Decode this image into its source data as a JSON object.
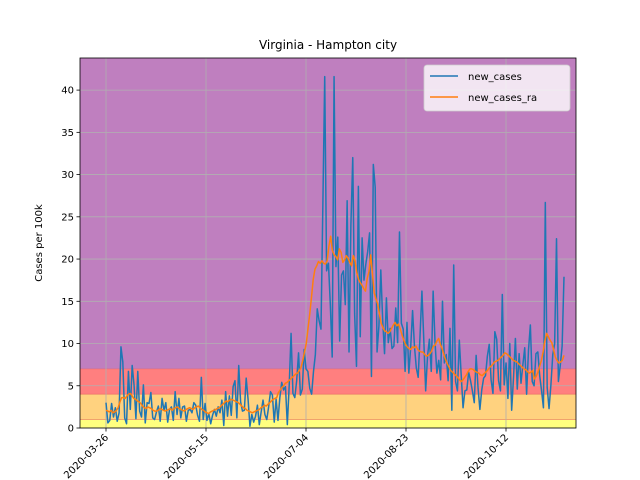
{
  "chart_data": {
    "type": "line",
    "title": "Virginia - Hampton city",
    "xlabel": "",
    "ylabel": "Cases per 100k",
    "x_tick_labels": [
      "2020-03-26",
      "2020-05-15",
      "2020-07-04",
      "2020-08-23",
      "2020-10-12"
    ],
    "x_start_date": "2020-03-26",
    "x_end_date": "2020-11-10",
    "xlim": [
      "2020-03-13",
      "2020-11-16"
    ],
    "ylim": [
      0,
      43.8
    ],
    "y_ticks": [
      0,
      5,
      10,
      15,
      20,
      25,
      30,
      35,
      40
    ],
    "grid": true,
    "legend_position": "top-right",
    "bands": [
      {
        "from": 0,
        "to": 1,
        "color": "#ffff7f"
      },
      {
        "from": 1,
        "to": 4,
        "color": "#ffd27f"
      },
      {
        "from": 4,
        "to": 7,
        "color": "#ff7f7f"
      },
      {
        "from": 7,
        "to": 43.8,
        "color": "#bf7fbf"
      }
    ],
    "series": [
      {
        "name": "new_cases",
        "color": "#1f77b4",
        "values": [
          3.0,
          0.6,
          0.9,
          2.9,
          1.3,
          2.4,
          0.8,
          1.8,
          9.6,
          7.8,
          1.2,
          0.5,
          6.7,
          2.2,
          7.4,
          5.1,
          1.1,
          6.7,
          2.0,
          1.3,
          5.1,
          0.6,
          3.0,
          2.9,
          4.2,
          1.2,
          1.0,
          1.9,
          2.6,
          0.8,
          3.5,
          2.1,
          3.0,
          0.7,
          2.2,
          2.5,
          0.9,
          4.3,
          1.6,
          3.5,
          1.2,
          2.5,
          2.6,
          0.8,
          2.1,
          2.2,
          1.8,
          3.0,
          2.7,
          1.5,
          0.8,
          6.0,
          1.0,
          2.9,
          0.9,
          1.7,
          0.5,
          1.5,
          2.2,
          1.4,
          2.5,
          1.8,
          3.3,
          0.3,
          4.3,
          1.4,
          3.8,
          1.5,
          4.9,
          5.6,
          1.2,
          7.4,
          3.1,
          2.0,
          2.1,
          5.9,
          3.4,
          0.2,
          1.6,
          0.7,
          1.4,
          2.7,
          0.4,
          1.9,
          3.3,
          1.6,
          1.0,
          2.5,
          4.3,
          3.9,
          0.7,
          3.4,
          0.9,
          3.6,
          5.4,
          4.5,
          4.9,
          0.4,
          5.0,
          11.2,
          4.1,
          3.6,
          5.6,
          8.9,
          3.9,
          4.6,
          9.3,
          7.0,
          6.7,
          4.7,
          4.0,
          6.7,
          8.7,
          14.1,
          12.7,
          11.7,
          26.3,
          41.6,
          18.6,
          19.5,
          14.6,
          8.4,
          41.6,
          19.1,
          22.6,
          10.3,
          18.1,
          18.6,
          14.6,
          26.9,
          9.0,
          24.0,
          32.0,
          13.5,
          7.3,
          28.6,
          10.8,
          22.5,
          17.5,
          19.4,
          20.9,
          23.1,
          6.1,
          31.2,
          28.5,
          9.0,
          12.1,
          18.7,
          12.8,
          8.8,
          15.4,
          10.1,
          11.8,
          9.4,
          9.7,
          14.2,
          10.1,
          23.2,
          12.4,
          11.7,
          6.7,
          12.5,
          6.5,
          9.6,
          13.9,
          9.7,
          7.1,
          6.0,
          11.0,
          16.2,
          10.4,
          4.4,
          8.5,
          10.5,
          6.7,
          16.2,
          10.2,
          6.5,
          8.0,
          5.7,
          15.0,
          7.7,
          8.7,
          5.6,
          11.8,
          2.1,
          19.3,
          5.5,
          4.4,
          10.4,
          6.3,
          2.4,
          4.4,
          4.5,
          6.6,
          5.6,
          4.4,
          3.0,
          8.6,
          4.8,
          2.2,
          4.5,
          5.9,
          6.2,
          8.5,
          9.9,
          5.7,
          4.1,
          11.4,
          10.5,
          5.6,
          4.4,
          15.8,
          5.1,
          7.7,
          3.5,
          10.0,
          2.1,
          6.0,
          10.6,
          4.6,
          8.8,
          5.3,
          7.5,
          9.5,
          4.0,
          9.2,
          12.2,
          5.5,
          5.0,
          8.8,
          9.0,
          6.2,
          4.4,
          2.4,
          26.7,
          4.8,
          2.3,
          5.1,
          8.7,
          10.0,
          22.4,
          5.5,
          7.4,
          9.7,
          17.9
        ]
      },
      {
        "name": "new_cases_ra",
        "color": "#ff7f0e",
        "values": [
          2.1,
          2.0,
          1.9,
          2.1,
          1.8,
          1.9,
          2.1,
          2.4,
          3.1,
          3.6,
          3.6,
          3.5,
          3.8,
          4.0,
          4.1,
          3.8,
          3.5,
          3.4,
          3.2,
          3.1,
          2.9,
          2.6,
          2.4,
          2.3,
          2.5,
          2.4,
          2.3,
          2.1,
          2.0,
          2.0,
          2.1,
          2.3,
          2.2,
          2.1,
          2.0,
          2.1,
          2.2,
          2.3,
          2.1,
          2.3,
          2.4,
          2.5,
          2.3,
          2.2,
          2.1,
          2.0,
          2.2,
          2.3,
          2.4,
          2.3,
          2.2,
          2.4,
          2.5,
          2.6,
          2.4,
          2.2,
          2.1,
          1.9,
          1.8,
          1.7,
          1.9,
          2.0,
          2.1,
          2.2,
          2.3,
          2.4,
          2.6,
          2.8,
          3.0,
          3.2,
          3.1,
          3.3,
          3.4,
          3.3,
          3.2,
          3.1,
          3.0,
          2.8,
          2.6,
          2.4,
          2.3,
          2.1,
          2.0,
          1.9,
          1.8,
          1.9,
          2.0,
          2.1,
          2.2,
          2.4,
          2.5,
          2.7,
          2.6,
          2.8,
          3.0,
          3.2,
          3.4,
          3.5,
          3.6,
          4.2,
          4.5,
          4.8,
          5.0,
          5.3,
          5.4,
          5.6,
          5.8,
          6.0,
          6.2,
          6.4,
          6.5,
          6.8,
          7.2,
          8.0,
          9.0,
          10.0,
          11.8,
          13.5,
          15.5,
          17.6,
          18.8,
          19.2,
          19.7,
          19.5,
          19.8,
          19.5,
          19.4,
          19.8,
          21.5,
          22.7,
          21.0,
          20.5,
          20.3,
          19.9,
          21.2,
          20.8,
          19.6,
          19.9,
          20.4,
          20.1,
          19.6,
          19.2,
          20.4,
          19.8,
          18.4,
          17.6,
          17.2,
          16.9,
          16.5,
          16.2,
          17.7,
          18.5,
          20.5,
          18.3,
          16.0,
          15.3,
          14.7,
          13.5,
          12.4,
          11.9,
          11.5,
          11.4,
          11.2,
          11.4,
          11.8,
          12.2,
          12.5,
          12.1,
          12.3,
          11.7,
          11.0,
          10.4,
          9.9,
          9.6,
          9.4,
          9.3,
          9.6,
          9.5,
          9.7,
          9.3,
          9.1,
          9.0,
          9.0,
          8.7,
          8.5,
          8.6,
          8.8,
          9.1,
          9.7,
          9.8,
          10.3,
          10.6,
          9.9,
          9.4,
          8.7,
          8.1,
          7.6,
          7.2,
          6.8,
          6.6,
          6.4,
          6.2,
          6.0,
          5.7,
          5.5,
          5.7,
          6.0,
          6.3,
          6.7,
          7.0,
          7.0,
          6.9,
          6.7,
          6.6,
          6.5,
          6.3,
          6.2,
          6.4,
          6.6,
          6.8,
          7.1,
          7.3,
          7.5,
          7.8,
          7.9,
          8.0,
          8.2,
          8.4,
          8.6,
          8.9,
          8.8,
          8.6,
          8.4,
          8.2,
          8.0,
          7.9,
          7.8,
          7.6,
          7.4,
          7.2,
          7.0,
          6.9,
          6.7,
          6.5,
          6.6,
          6.8,
          5.8,
          6.1,
          6.6,
          7.3,
          8.0,
          9.0,
          10.3,
          11.2,
          10.8,
          10.4,
          10.1,
          9.3,
          8.4,
          8.0,
          7.7,
          7.8,
          8.0,
          8.6
        ]
      }
    ]
  }
}
